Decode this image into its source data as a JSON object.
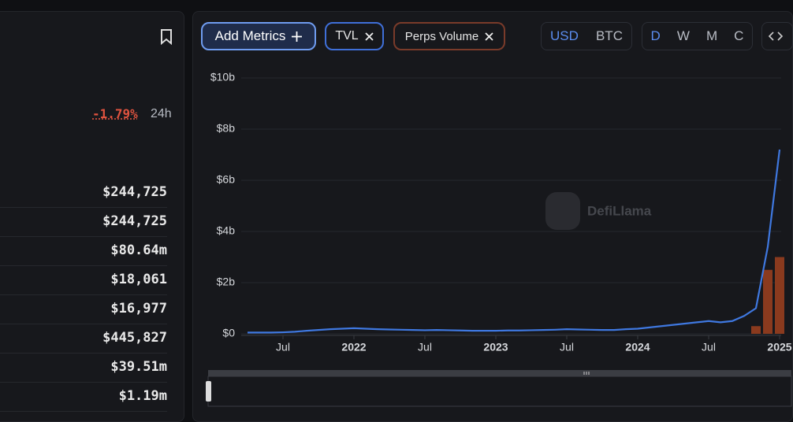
{
  "sidebar": {
    "change": "-1.79%",
    "period": "24h",
    "rows": [
      "$244,725",
      "$244,725",
      "$80.64m",
      "$18,061",
      "$16,977",
      "$445,827",
      "$39.51m",
      "$1.19m"
    ]
  },
  "toolbar": {
    "add_metrics": "Add Metrics",
    "metrics": [
      "TVL",
      "Perps Volume"
    ],
    "currencies": [
      "USD",
      "BTC"
    ],
    "intervals": [
      "D",
      "W",
      "M",
      "C"
    ]
  },
  "watermark": "DefiLlama",
  "chart_data": {
    "type": "line-bar",
    "x": [
      "2021-04",
      "2021-05",
      "2021-06",
      "2021-07",
      "2021-08",
      "2021-09",
      "2021-10",
      "2021-11",
      "2021-12",
      "2022-01",
      "2022-02",
      "2022-03",
      "2022-04",
      "2022-05",
      "2022-06",
      "2022-07",
      "2022-08",
      "2022-09",
      "2022-10",
      "2022-11",
      "2022-12",
      "2023-01",
      "2023-02",
      "2023-03",
      "2023-04",
      "2023-05",
      "2023-06",
      "2023-07",
      "2023-08",
      "2023-09",
      "2023-10",
      "2023-11",
      "2023-12",
      "2024-01",
      "2024-02",
      "2024-03",
      "2024-04",
      "2024-05",
      "2024-06",
      "2024-07",
      "2024-08",
      "2024-09",
      "2024-10",
      "2024-11",
      "2024-12",
      "2025-01"
    ],
    "series": [
      {
        "name": "TVL",
        "color": "#3f78e0",
        "kind": "line",
        "values": [
          0.05,
          0.05,
          0.05,
          0.06,
          0.08,
          0.12,
          0.15,
          0.18,
          0.2,
          0.22,
          0.2,
          0.18,
          0.17,
          0.16,
          0.15,
          0.14,
          0.15,
          0.14,
          0.13,
          0.12,
          0.12,
          0.12,
          0.13,
          0.13,
          0.14,
          0.15,
          0.16,
          0.18,
          0.17,
          0.16,
          0.15,
          0.15,
          0.18,
          0.2,
          0.25,
          0.3,
          0.35,
          0.4,
          0.45,
          0.5,
          0.45,
          0.5,
          0.7,
          1.0,
          3.4,
          7.2
        ]
      },
      {
        "name": "Perps Volume",
        "color": "#8a3a1e",
        "kind": "bar",
        "values": [
          null,
          null,
          null,
          null,
          null,
          null,
          null,
          null,
          null,
          null,
          null,
          null,
          null,
          null,
          null,
          null,
          null,
          null,
          null,
          null,
          null,
          null,
          null,
          null,
          null,
          null,
          null,
          null,
          null,
          null,
          null,
          null,
          null,
          null,
          null,
          null,
          null,
          null,
          null,
          null,
          null,
          null,
          null,
          0.3,
          2.5,
          3.0
        ]
      }
    ],
    "xlim": [
      "2021-04",
      "2025-01"
    ],
    "xticks": [
      {
        "value": "2021-07",
        "label": "Jul"
      },
      {
        "value": "2022-01",
        "label": "2022"
      },
      {
        "value": "2022-07",
        "label": "Jul"
      },
      {
        "value": "2023-01",
        "label": "2023"
      },
      {
        "value": "2023-07",
        "label": "Jul"
      },
      {
        "value": "2024-01",
        "label": "2024"
      },
      {
        "value": "2024-07",
        "label": "Jul"
      },
      {
        "value": "2025-01",
        "label": "2025"
      }
    ],
    "ylim": [
      0,
      10
    ],
    "yticks": [
      {
        "value": 0,
        "label": "$0"
      },
      {
        "value": 2,
        "label": "$2b"
      },
      {
        "value": 4,
        "label": "$4b"
      },
      {
        "value": 6,
        "label": "$6b"
      },
      {
        "value": 8,
        "label": "$8b"
      },
      {
        "value": 10,
        "label": "$10b"
      }
    ],
    "grid": true
  }
}
